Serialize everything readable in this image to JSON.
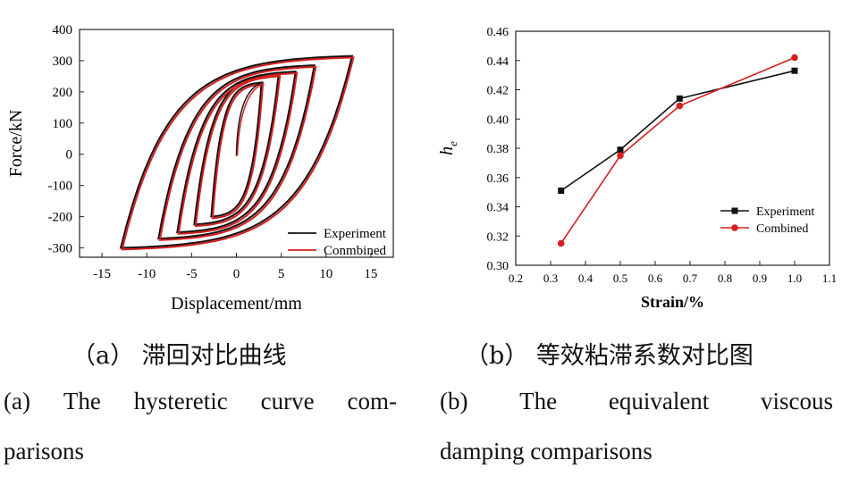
{
  "chart_data": [
    {
      "type": "line",
      "xlabel": "Displacement/mm",
      "ylabel": "Force/kN",
      "xlim": [
        -17.5,
        17.5
      ],
      "ylim": [
        -330,
        400
      ],
      "xticks": [
        -15,
        -10,
        -5,
        0,
        5,
        10,
        15
      ],
      "xtick_labels": [
        "-15",
        "-10",
        "-5",
        "0",
        "5",
        "10",
        "15"
      ],
      "yticks": [
        -300,
        -200,
        -100,
        0,
        100,
        200,
        300,
        400
      ],
      "ytick_labels": [
        "-300",
        "-200",
        "-100",
        "0",
        "100",
        "200",
        "300",
        "400"
      ],
      "legend_position": "bottom-right",
      "grid": false,
      "series": [
        {
          "name": "Experiment",
          "color": "#111111"
        },
        {
          "name": "Conmbined",
          "color": "#d42020"
        }
      ],
      "loops": [
        {
          "dmax": 2.8,
          "fmax": 230,
          "fmin": -200
        },
        {
          "dmax": 4.7,
          "fmax": 255,
          "fmin": -225
        },
        {
          "dmax": 6.6,
          "fmax": 265,
          "fmin": -250
        },
        {
          "dmax": 8.7,
          "fmax": 285,
          "fmin": -270
        },
        {
          "dmax": 12.9,
          "fmax": 315,
          "fmin": -300
        }
      ]
    },
    {
      "type": "line",
      "xlabel": "Strain/%",
      "ylabel": "h",
      "ylabel_sub": "e",
      "xlim": [
        0.2,
        1.1
      ],
      "ylim": [
        0.3,
        0.46
      ],
      "xticks": [
        0.2,
        0.3,
        0.4,
        0.5,
        0.6,
        0.7,
        0.8,
        0.9,
        1.0,
        1.1
      ],
      "xtick_labels": [
        "0.2",
        "0.3",
        "0.4",
        "0.5",
        "0.6",
        "0.7",
        "0.8",
        "0.9",
        "1.0",
        "1.1"
      ],
      "yticks": [
        0.3,
        0.32,
        0.34,
        0.36,
        0.38,
        0.4,
        0.42,
        0.44,
        0.46
      ],
      "ytick_labels": [
        "0.30",
        "0.32",
        "0.34",
        "0.36",
        "0.38",
        "0.40",
        "0.42",
        "0.44",
        "0.46"
      ],
      "legend_position": "bottom-right",
      "grid": false,
      "x": [
        0.33,
        0.5,
        0.67,
        1.0
      ],
      "series": [
        {
          "name": "Experiment",
          "color": "#111111",
          "marker": "square",
          "values": [
            0.351,
            0.379,
            0.414,
            0.433
          ]
        },
        {
          "name": "Combined",
          "color": "#d42020",
          "marker": "circle",
          "values": [
            0.315,
            0.375,
            0.409,
            0.442
          ]
        }
      ]
    }
  ],
  "captions": {
    "a_cn": "（a） 滞回对比曲线",
    "b_cn": "（b） 等效粘滞系数对比图",
    "a_en_words": [
      "(a)",
      "The",
      "hysteretic",
      "curve",
      "com-"
    ],
    "a_en_line2": "parisons",
    "b_en_words": [
      "(b)",
      "The",
      "equivalent",
      "viscous"
    ],
    "b_en_line2": "damping comparisons"
  }
}
